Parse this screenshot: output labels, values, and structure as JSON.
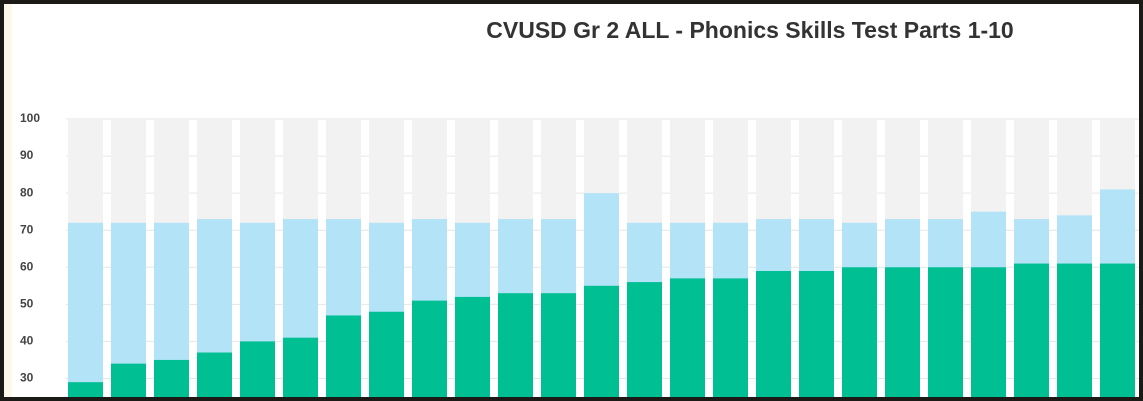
{
  "chart_data": {
    "type": "bar",
    "title": "CVUSD Gr 2 ALL - Phonics Skills Test Parts 1-10",
    "series": [
      {
        "color": "#b3e3f7",
        "values": [
          72,
          72,
          72,
          73,
          72,
          73,
          73,
          72,
          73,
          72,
          73,
          73,
          80,
          72,
          72,
          72,
          73,
          73,
          72,
          73,
          73,
          75,
          73,
          74,
          81
        ]
      },
      {
        "color": "#00bf93",
        "values": [
          29,
          34,
          35,
          37,
          40,
          41,
          47,
          48,
          51,
          52,
          53,
          53,
          55,
          56,
          57,
          57,
          59,
          59,
          60,
          60,
          60,
          60,
          61,
          61,
          61
        ]
      }
    ],
    "ylim": [
      25,
      100
    ],
    "yticks": [
      30,
      40,
      50,
      60,
      70,
      80,
      90,
      100
    ],
    "grid": true
  }
}
